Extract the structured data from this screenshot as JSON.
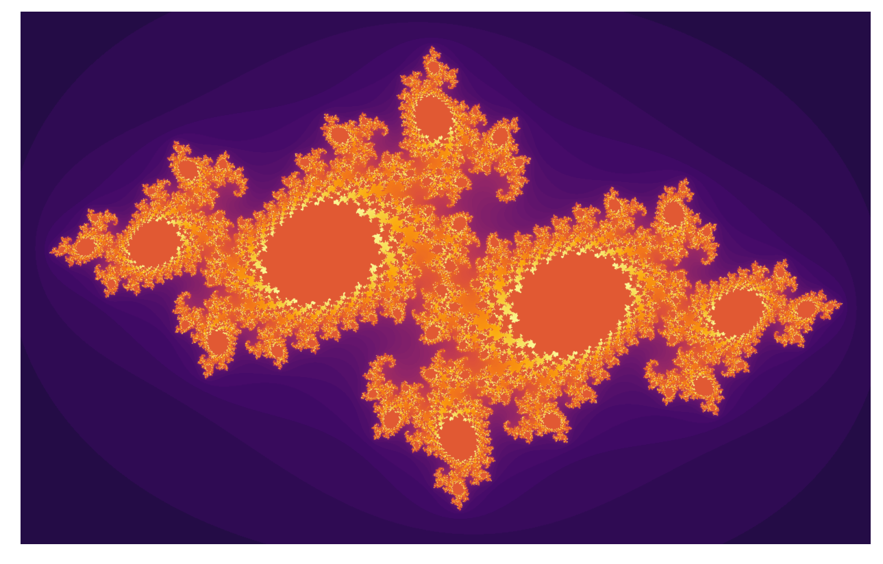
{
  "image": {
    "subject": "julia-set-fractal",
    "background_color": "#ffffff",
    "frame_color": "#000000",
    "palette": [
      "#000004",
      "#230c45",
      "#420a68",
      "#6a176e",
      "#932667",
      "#bc3754",
      "#dd513a",
      "#f37819",
      "#fca50a",
      "#f6d746",
      "#fcffa4"
    ]
  }
}
